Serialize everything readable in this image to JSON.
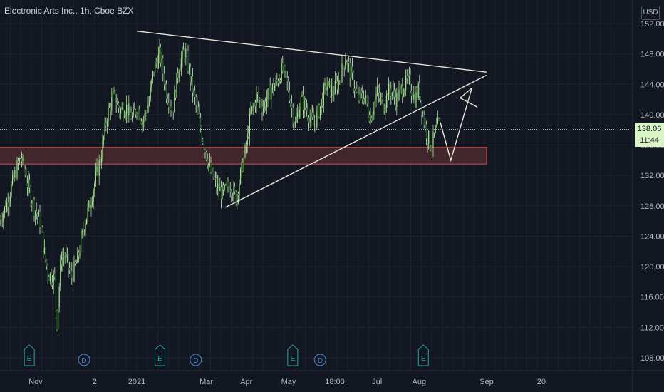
{
  "header": {
    "title": "Electronic Arts Inc., 1h, Cboe BZX"
  },
  "axis": {
    "currency": "USD"
  },
  "current": {
    "price": "138.06",
    "countdown": "11:44"
  },
  "colors": {
    "background": "#131722",
    "candle": "#a6e08a",
    "candle_dark": "#1f5a2a",
    "zone_fill": "#4a2a2e",
    "zone_border": "#e04848",
    "trendline": "#e6e6d8",
    "event_e": "#26a69a",
    "event_d": "#4f8bd6"
  },
  "chart_data": {
    "type": "candlestick",
    "title": "Electronic Arts Inc., 1h, Cboe BZX",
    "ylabel": "USD",
    "ylim": [
      106,
      153
    ],
    "y_ticks": [
      "152.00",
      "148.00",
      "144.00",
      "140.00",
      "136.00",
      "132.00",
      "128.00",
      "124.00",
      "120.00",
      "116.00",
      "112.00",
      "108.00"
    ],
    "x_ticks": [
      "Nov",
      "2",
      "2021",
      "Mar",
      "Apr",
      "May",
      "18:00",
      "Jul",
      "Aug",
      "Sep",
      "20"
    ],
    "x_tick_positions": [
      0.6,
      2.0,
      3.0,
      4.65,
      5.6,
      6.6,
      7.7,
      8.7,
      9.7,
      11.3,
      12.6
    ],
    "price_path": [
      [
        -0.3,
        125.5
      ],
      [
        -0.1,
        128.0
      ],
      [
        0.1,
        132.0
      ],
      [
        0.25,
        134.5
      ],
      [
        0.4,
        131.0
      ],
      [
        0.55,
        128.0
      ],
      [
        0.7,
        126.0
      ],
      [
        0.8,
        122.0
      ],
      [
        0.9,
        119.0
      ],
      [
        1.05,
        118.5
      ],
      [
        1.1,
        112.0
      ],
      [
        1.2,
        121.0
      ],
      [
        1.3,
        121.5
      ],
      [
        1.45,
        118.5
      ],
      [
        1.6,
        121.0
      ],
      [
        1.75,
        125.5
      ],
      [
        1.9,
        128.5
      ],
      [
        2.0,
        131.0
      ],
      [
        2.15,
        134.5
      ],
      [
        2.3,
        140.0
      ],
      [
        2.45,
        142.5
      ],
      [
        2.6,
        140.5
      ],
      [
        2.75,
        141.0
      ],
      [
        2.9,
        139.5
      ],
      [
        3.0,
        141.0
      ],
      [
        3.15,
        139.0
      ],
      [
        3.3,
        142.0
      ],
      [
        3.4,
        146.0
      ],
      [
        3.55,
        148.0
      ],
      [
        3.7,
        143.0
      ],
      [
        3.85,
        140.5
      ],
      [
        4.0,
        146.5
      ],
      [
        4.15,
        148.5
      ],
      [
        4.3,
        144.0
      ],
      [
        4.45,
        140.0
      ],
      [
        4.6,
        136.0
      ],
      [
        4.75,
        132.5
      ],
      [
        4.9,
        130.5
      ],
      [
        5.05,
        129.5
      ],
      [
        5.2,
        131.0
      ],
      [
        5.35,
        129.0
      ],
      [
        5.5,
        133.0
      ],
      [
        5.6,
        136.0
      ],
      [
        5.7,
        140.0
      ],
      [
        5.85,
        142.5
      ],
      [
        6.0,
        141.0
      ],
      [
        6.15,
        143.0
      ],
      [
        6.3,
        144.0
      ],
      [
        6.45,
        146.0
      ],
      [
        6.6,
        143.5
      ],
      [
        6.75,
        138.5
      ],
      [
        6.9,
        142.0
      ],
      [
        7.05,
        140.5
      ],
      [
        7.2,
        138.5
      ],
      [
        7.35,
        141.0
      ],
      [
        7.5,
        144.0
      ],
      [
        7.65,
        143.0
      ],
      [
        7.8,
        144.5
      ],
      [
        7.95,
        147.5
      ],
      [
        8.1,
        145.0
      ],
      [
        8.25,
        142.0
      ],
      [
        8.4,
        142.5
      ],
      [
        8.55,
        139.5
      ],
      [
        8.7,
        143.0
      ],
      [
        8.85,
        141.0
      ],
      [
        9.0,
        143.5
      ],
      [
        9.15,
        142.0
      ],
      [
        9.3,
        143.5
      ],
      [
        9.45,
        144.5
      ],
      [
        9.6,
        142.0
      ],
      [
        9.7,
        143.5
      ],
      [
        9.8,
        139.5
      ],
      [
        9.9,
        137.0
      ],
      [
        10.0,
        136.0
      ],
      [
        10.1,
        138.0
      ],
      [
        10.2,
        139.0
      ]
    ],
    "resistance_line": [
      [
        3.0,
        151.0
      ],
      [
        11.3,
        145.6
      ]
    ],
    "support_line": [
      [
        5.1,
        127.8
      ],
      [
        11.3,
        145.2
      ]
    ],
    "projection_path": [
      [
        10.2,
        139.0
      ],
      [
        10.45,
        134.0
      ],
      [
        10.95,
        143.5
      ]
    ],
    "projection_arrow": [
      [
        10.95,
        143.5
      ],
      [
        10.67,
        142.2
      ],
      [
        11.08,
        141.0
      ]
    ],
    "demand_zone": {
      "x_range": [
        -0.8,
        11.3
      ],
      "y_range": [
        133.5,
        135.7
      ]
    },
    "current_price_line": 138.06,
    "events": [
      {
        "label": "E",
        "x": 0.45,
        "kind": "earnings"
      },
      {
        "label": "D",
        "x": 1.75,
        "kind": "dividend"
      },
      {
        "label": "E",
        "x": 3.55,
        "kind": "earnings"
      },
      {
        "label": "D",
        "x": 4.4,
        "kind": "dividend"
      },
      {
        "label": "E",
        "x": 6.7,
        "kind": "earnings"
      },
      {
        "label": "D",
        "x": 7.35,
        "kind": "dividend"
      },
      {
        "label": "E",
        "x": 9.8,
        "kind": "earnings"
      }
    ]
  }
}
